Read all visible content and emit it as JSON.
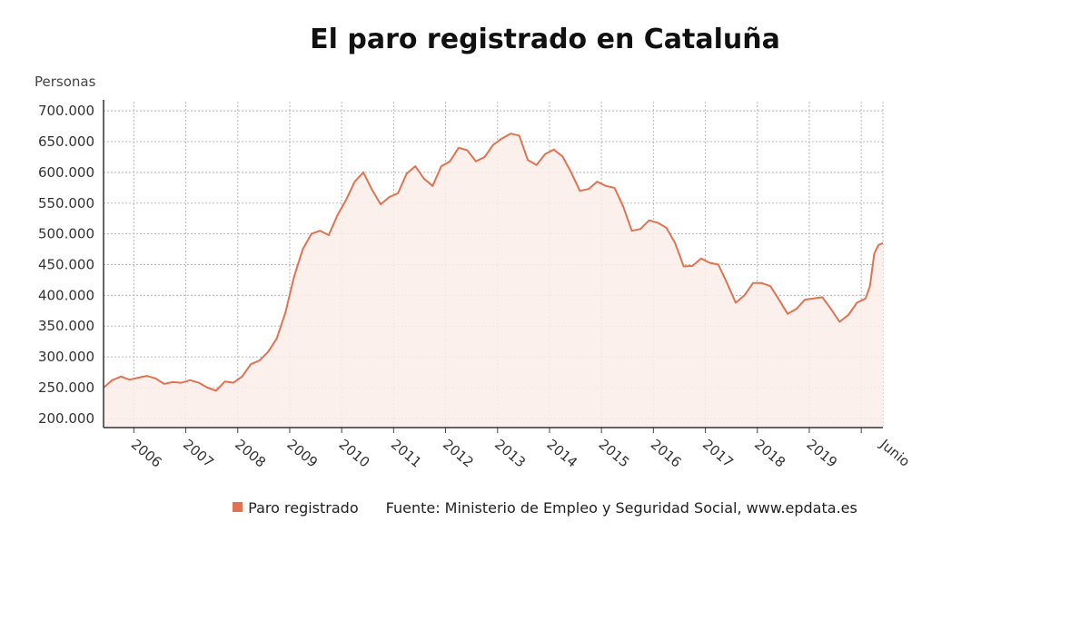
{
  "chart_data": {
    "type": "area",
    "title": "El paro registrado en Cataluña",
    "ylabel": "Personas",
    "xlabel": "",
    "ylim": [
      185000,
      715000
    ],
    "yticks": [
      200000,
      250000,
      300000,
      350000,
      400000,
      450000,
      500000,
      550000,
      600000,
      650000,
      700000
    ],
    "ytick_labels": [
      "200.000",
      "250.000",
      "300.000",
      "350.000",
      "400.000",
      "450.000",
      "500.000",
      "550.000",
      "600.000",
      "650.000",
      "700.000"
    ],
    "x_start": "2005-06",
    "x_end": "2020-06",
    "xticks": [
      "2006",
      "2007",
      "2008",
      "2009",
      "2010",
      "2011",
      "2012",
      "2013",
      "2014",
      "2015",
      "2016",
      "2017",
      "2018",
      "2019",
      "Junio"
    ],
    "grid": true,
    "legend_position": "bottom",
    "colors": {
      "line": "#E07352",
      "fill": "#FCEDE9"
    },
    "series": [
      {
        "name": "Paro registrado",
        "points": [
          [
            "2005-06",
            250000
          ],
          [
            "2005-08",
            262000
          ],
          [
            "2005-10",
            268000
          ],
          [
            "2005-12",
            263000
          ],
          [
            "2006-02",
            266000
          ],
          [
            "2006-04",
            269000
          ],
          [
            "2006-06",
            265000
          ],
          [
            "2006-08",
            256000
          ],
          [
            "2006-10",
            259000
          ],
          [
            "2006-12",
            258000
          ],
          [
            "2007-02",
            262000
          ],
          [
            "2007-04",
            258000
          ],
          [
            "2007-06",
            250000
          ],
          [
            "2007-08",
            245000
          ],
          [
            "2007-10",
            260000
          ],
          [
            "2007-12",
            258000
          ],
          [
            "2008-02",
            268000
          ],
          [
            "2008-04",
            288000
          ],
          [
            "2008-06",
            294000
          ],
          [
            "2008-08",
            308000
          ],
          [
            "2008-10",
            330000
          ],
          [
            "2008-12",
            372000
          ],
          [
            "2009-02",
            430000
          ],
          [
            "2009-04",
            475000
          ],
          [
            "2009-06",
            500000
          ],
          [
            "2009-08",
            505000
          ],
          [
            "2009-10",
            498000
          ],
          [
            "2009-12",
            530000
          ],
          [
            "2010-02",
            555000
          ],
          [
            "2010-04",
            585000
          ],
          [
            "2010-06",
            600000
          ],
          [
            "2010-08",
            572000
          ],
          [
            "2010-10",
            548000
          ],
          [
            "2010-12",
            560000
          ],
          [
            "2011-02",
            566000
          ],
          [
            "2011-04",
            598000
          ],
          [
            "2011-06",
            610000
          ],
          [
            "2011-08",
            590000
          ],
          [
            "2011-10",
            578000
          ],
          [
            "2011-12",
            610000
          ],
          [
            "2012-02",
            618000
          ],
          [
            "2012-04",
            640000
          ],
          [
            "2012-06",
            636000
          ],
          [
            "2012-08",
            618000
          ],
          [
            "2012-10",
            625000
          ],
          [
            "2012-12",
            645000
          ],
          [
            "2013-02",
            655000
          ],
          [
            "2013-04",
            663000
          ],
          [
            "2013-06",
            660000
          ],
          [
            "2013-08",
            620000
          ],
          [
            "2013-10",
            612000
          ],
          [
            "2013-12",
            630000
          ],
          [
            "2014-02",
            637000
          ],
          [
            "2014-04",
            626000
          ],
          [
            "2014-06",
            600000
          ],
          [
            "2014-08",
            570000
          ],
          [
            "2014-10",
            573000
          ],
          [
            "2014-12",
            585000
          ],
          [
            "2015-02",
            578000
          ],
          [
            "2015-04",
            575000
          ],
          [
            "2015-06",
            545000
          ],
          [
            "2015-08",
            505000
          ],
          [
            "2015-10",
            508000
          ],
          [
            "2015-12",
            522000
          ],
          [
            "2016-02",
            518000
          ],
          [
            "2016-04",
            510000
          ],
          [
            "2016-06",
            485000
          ],
          [
            "2016-08",
            447000
          ],
          [
            "2016-10",
            448000
          ],
          [
            "2016-12",
            460000
          ],
          [
            "2017-02",
            453000
          ],
          [
            "2017-04",
            450000
          ],
          [
            "2017-06",
            420000
          ],
          [
            "2017-08",
            388000
          ],
          [
            "2017-10",
            400000
          ],
          [
            "2017-12",
            420000
          ],
          [
            "2018-02",
            420000
          ],
          [
            "2018-04",
            415000
          ],
          [
            "2018-06",
            393000
          ],
          [
            "2018-08",
            370000
          ],
          [
            "2018-10",
            378000
          ],
          [
            "2018-12",
            393000
          ],
          [
            "2019-02",
            395000
          ],
          [
            "2019-04",
            397000
          ],
          [
            "2019-06",
            378000
          ],
          [
            "2019-08",
            357000
          ],
          [
            "2019-10",
            368000
          ],
          [
            "2019-12",
            388000
          ],
          [
            "2020-02",
            395000
          ],
          [
            "2020-03",
            415000
          ],
          [
            "2020-04",
            468000
          ],
          [
            "2020-05",
            482000
          ],
          [
            "2020-06",
            485000
          ]
        ]
      }
    ],
    "source": "Fuente: Ministerio de Empleo y Seguridad Social, www.epdata.es"
  }
}
